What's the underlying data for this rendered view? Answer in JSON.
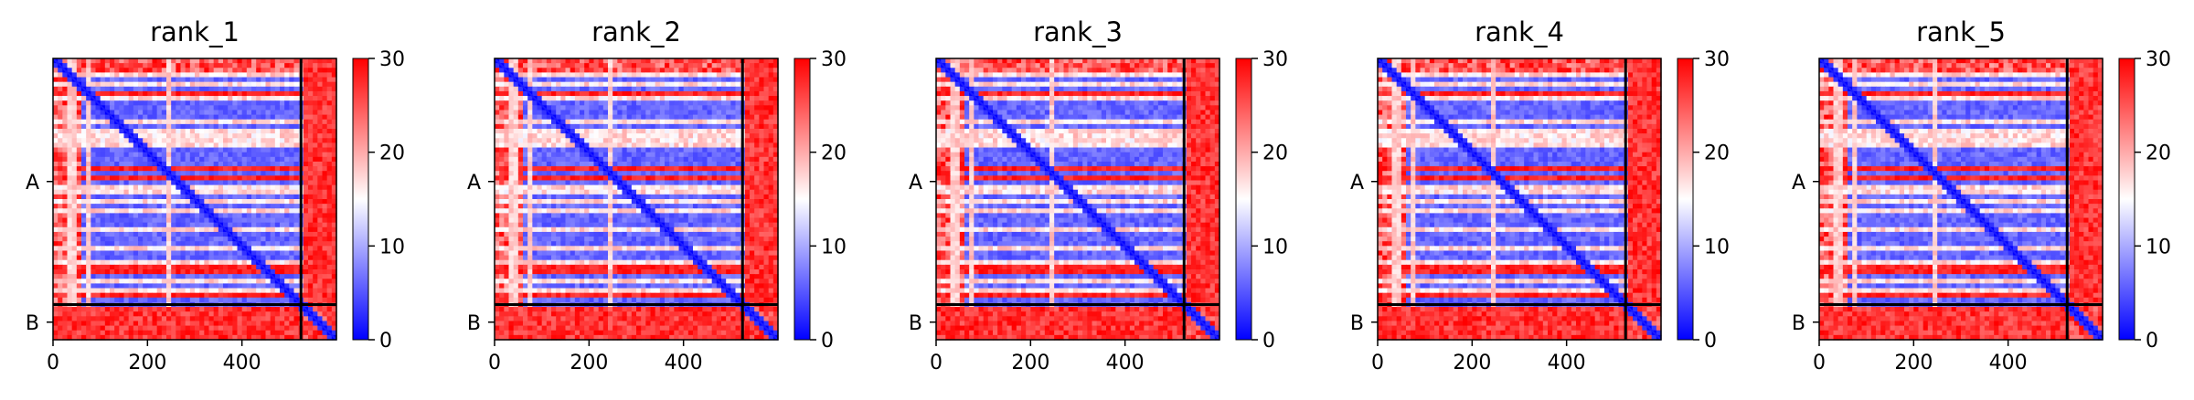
{
  "chart_data": {
    "type": "heatmap",
    "color_scale": {
      "min": 0,
      "max": 30,
      "ticks": [
        0,
        10,
        20,
        30
      ],
      "colors": [
        "#0000ff",
        "#ffffff",
        "#ff0000"
      ]
    },
    "x_ticks": [
      0,
      200,
      400
    ],
    "x_range": [
      0,
      600
    ],
    "chain_labels": [
      "A",
      "B"
    ],
    "chain_boundary": 525,
    "panels": [
      {
        "title": "rank_1"
      },
      {
        "title": "rank_2"
      },
      {
        "title": "rank_3"
      },
      {
        "title": "rank_4"
      },
      {
        "title": "rank_5"
      }
    ]
  }
}
